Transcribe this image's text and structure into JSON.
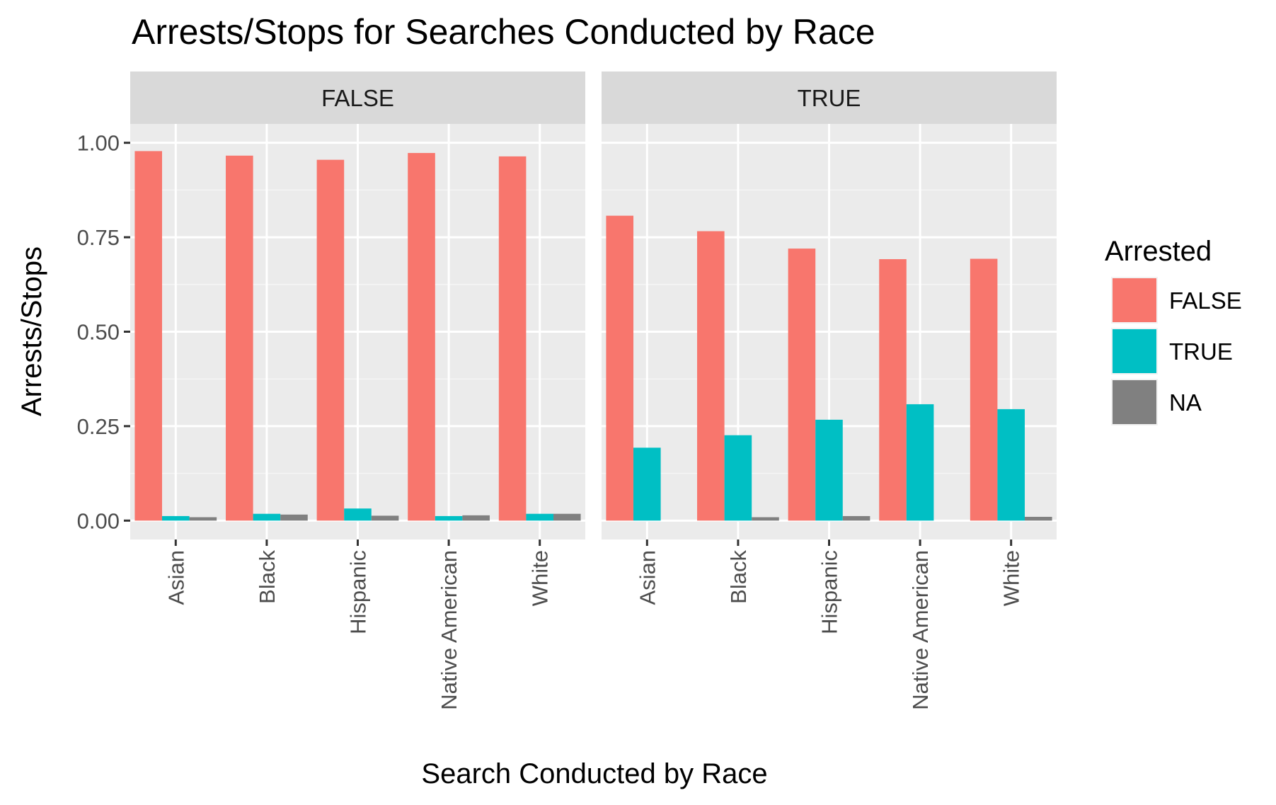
{
  "chart_data": {
    "type": "bar",
    "title": "Arrests/Stops for Searches Conducted by Race",
    "xlabel": "Search Conducted by Race",
    "ylabel": "Arrests/Stops",
    "ylim": [
      -0.05,
      1.05
    ],
    "yticks": [
      "0.00",
      "0.25",
      "0.50",
      "0.75",
      "1.00"
    ],
    "categories": [
      "Asian",
      "Black",
      "Hispanic",
      "Native American",
      "White"
    ],
    "legend": {
      "title": "Arrested",
      "position": "right",
      "entries": [
        {
          "label": "FALSE",
          "color": "#F8766D"
        },
        {
          "label": "TRUE",
          "color": "#00BFC4"
        },
        {
          "label": "NA",
          "color": "#808080"
        }
      ]
    },
    "grid": true,
    "panels": [
      {
        "strip": "FALSE",
        "series": [
          {
            "name": "FALSE",
            "values": [
              0.978,
              0.966,
              0.955,
              0.973,
              0.964
            ]
          },
          {
            "name": "TRUE",
            "values": [
              0.012,
              0.018,
              0.032,
              0.012,
              0.018
            ]
          },
          {
            "name": "NA",
            "values": [
              0.009,
              0.016,
              0.013,
              0.014,
              0.018
            ]
          }
        ]
      },
      {
        "strip": "TRUE",
        "series": [
          {
            "name": "FALSE",
            "values": [
              0.807,
              0.766,
              0.72,
              0.692,
              0.693
            ]
          },
          {
            "name": "TRUE",
            "values": [
              0.193,
              0.226,
              0.267,
              0.308,
              0.295
            ]
          },
          {
            "name": "NA",
            "values": [
              0.0,
              0.009,
              0.012,
              0.0,
              0.01
            ]
          }
        ]
      }
    ]
  }
}
